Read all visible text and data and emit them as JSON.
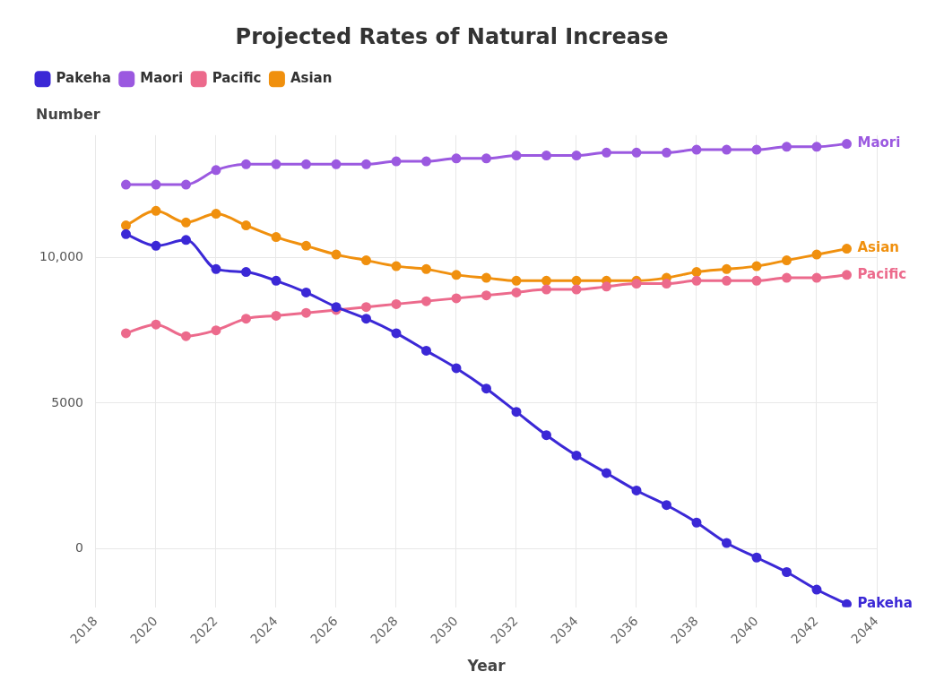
{
  "chart_data": {
    "type": "line",
    "title": "Projected Rates of Natural Increase",
    "xlabel": "Year",
    "ylabel": "Number",
    "x": [
      2019,
      2020,
      2021,
      2022,
      2023,
      2024,
      2025,
      2026,
      2027,
      2028,
      2029,
      2030,
      2031,
      2032,
      2033,
      2034,
      2035,
      2036,
      2037,
      2038,
      2039,
      2040,
      2041,
      2042,
      2043
    ],
    "series": [
      {
        "name": "Pakeha",
        "color": "#3b28d6",
        "values": [
          10800,
          10400,
          10600,
          9600,
          9500,
          9200,
          8800,
          8300,
          7900,
          7400,
          6800,
          6200,
          5500,
          4700,
          3900,
          3200,
          2600,
          2000,
          1500,
          900,
          200,
          -300,
          -800,
          -1400,
          -1900
        ]
      },
      {
        "name": "Maori",
        "color": "#9b59e0",
        "values": [
          12500,
          12500,
          12500,
          13000,
          13200,
          13200,
          13200,
          13200,
          13200,
          13300,
          13300,
          13400,
          13400,
          13500,
          13500,
          13500,
          13600,
          13600,
          13600,
          13700,
          13700,
          13700,
          13800,
          13800,
          13900
        ]
      },
      {
        "name": "Pacific",
        "color": "#ec6a8c",
        "values": [
          7400,
          7700,
          7300,
          7500,
          7900,
          8000,
          8100,
          8200,
          8300,
          8400,
          8500,
          8600,
          8700,
          8800,
          8900,
          8900,
          9000,
          9100,
          9100,
          9200,
          9200,
          9200,
          9300,
          9300,
          9400
        ]
      },
      {
        "name": "Asian",
        "color": "#f0900e",
        "values": [
          11100,
          11600,
          11200,
          11500,
          11100,
          10700,
          10400,
          10100,
          9900,
          9700,
          9600,
          9400,
          9300,
          9200,
          9200,
          9200,
          9200,
          9200,
          9300,
          9500,
          9600,
          9700,
          9900,
          10100,
          10300
        ]
      }
    ],
    "xlim": [
      2018,
      2044
    ],
    "xticks": [
      2018,
      2020,
      2022,
      2024,
      2026,
      2028,
      2030,
      2032,
      2034,
      2036,
      2038,
      2040,
      2042,
      2044
    ],
    "ylim": [
      -2000,
      14200
    ],
    "yticks": [
      0,
      5000,
      {
        "value": 10000,
        "label": "10,000"
      }
    ],
    "grid": true,
    "legend": "top left",
    "marker": "circle",
    "line_style": "solid"
  }
}
